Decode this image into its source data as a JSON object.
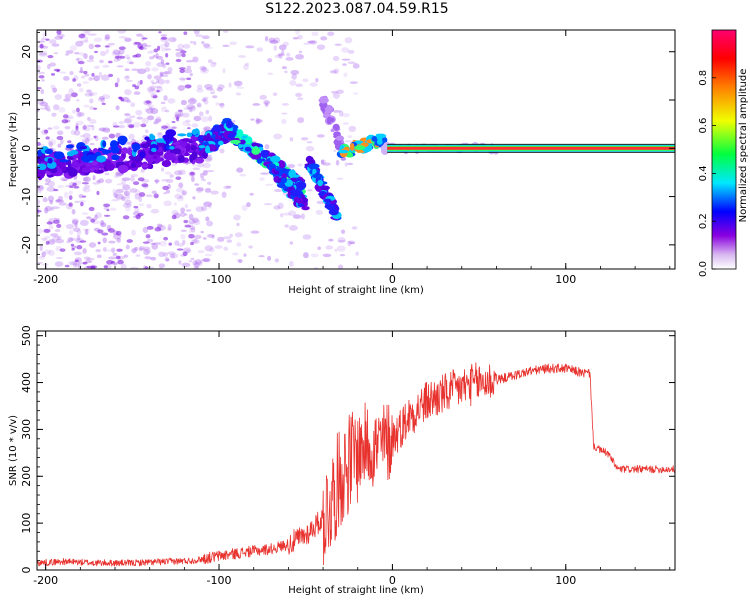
{
  "figure": {
    "title": "S122.2023.087.04.59.R15"
  },
  "chart_data": [
    {
      "type": "heatmap",
      "title": "",
      "xlabel": "Height of straight line (km)",
      "ylabel": "Frequency (Hz)",
      "xlim": [
        -205,
        163
      ],
      "ylim": [
        -25,
        24.5
      ],
      "xticks": [
        -200,
        -100,
        0,
        100
      ],
      "yticks": [
        -20,
        -10,
        0,
        10,
        20
      ],
      "colorbar": {
        "label": "Normalized spectral amplitude",
        "range": [
          0,
          1
        ],
        "ticks": [
          0.0,
          0.2,
          0.4,
          0.6,
          0.8
        ],
        "colormap": "hsv-like (violet-blue-cyan-green-yellow-orange-red-pink)"
      },
      "features": [
        {
          "name": "main tone",
          "x": [
            -3,
            163
          ],
          "y": [
            0,
            0
          ],
          "amplitude": 1.0
        },
        {
          "name": "descending branch 1",
          "x": [
            -95,
            -52
          ],
          "y": [
            4,
            -8
          ]
        },
        {
          "name": "descending branch 2",
          "x": [
            -70,
            -50
          ],
          "y": [
            -4,
            -12
          ]
        },
        {
          "name": "descending branch 3",
          "x": [
            -48,
            -32
          ],
          "y": [
            -3,
            -14
          ]
        },
        {
          "name": "noisy band",
          "x": [
            -205,
            -110
          ],
          "y": [
            -6,
            3
          ]
        }
      ]
    },
    {
      "type": "line",
      "title": "",
      "xlabel": "Height of straight line (km)",
      "ylabel": "SNR (10 * v/v)",
      "xlim": [
        -205,
        163
      ],
      "ylim": [
        0,
        510
      ],
      "xticks": [
        -200,
        -100,
        0,
        100
      ],
      "yticks": [
        0,
        100,
        200,
        300,
        400,
        500
      ],
      "series": [
        {
          "color": "#e8322e",
          "x": [
            -205,
            -190,
            -170,
            -150,
            -130,
            -115,
            -100,
            -85,
            -70,
            -60,
            -50,
            -40,
            -35,
            -30,
            -25,
            -20,
            -15,
            -10,
            -5,
            0,
            10,
            20,
            30,
            40,
            50,
            60,
            70,
            80,
            90,
            100,
            110,
            114,
            116,
            120,
            124,
            130,
            140,
            150,
            163
          ],
          "y": [
            15,
            18,
            15,
            15,
            18,
            20,
            30,
            38,
            45,
            55,
            75,
            110,
            150,
            200,
            230,
            250,
            270,
            260,
            270,
            280,
            330,
            360,
            375,
            390,
            400,
            405,
            415,
            425,
            430,
            430,
            420,
            420,
            265,
            255,
            250,
            215,
            215,
            215,
            215
          ]
        }
      ]
    }
  ]
}
